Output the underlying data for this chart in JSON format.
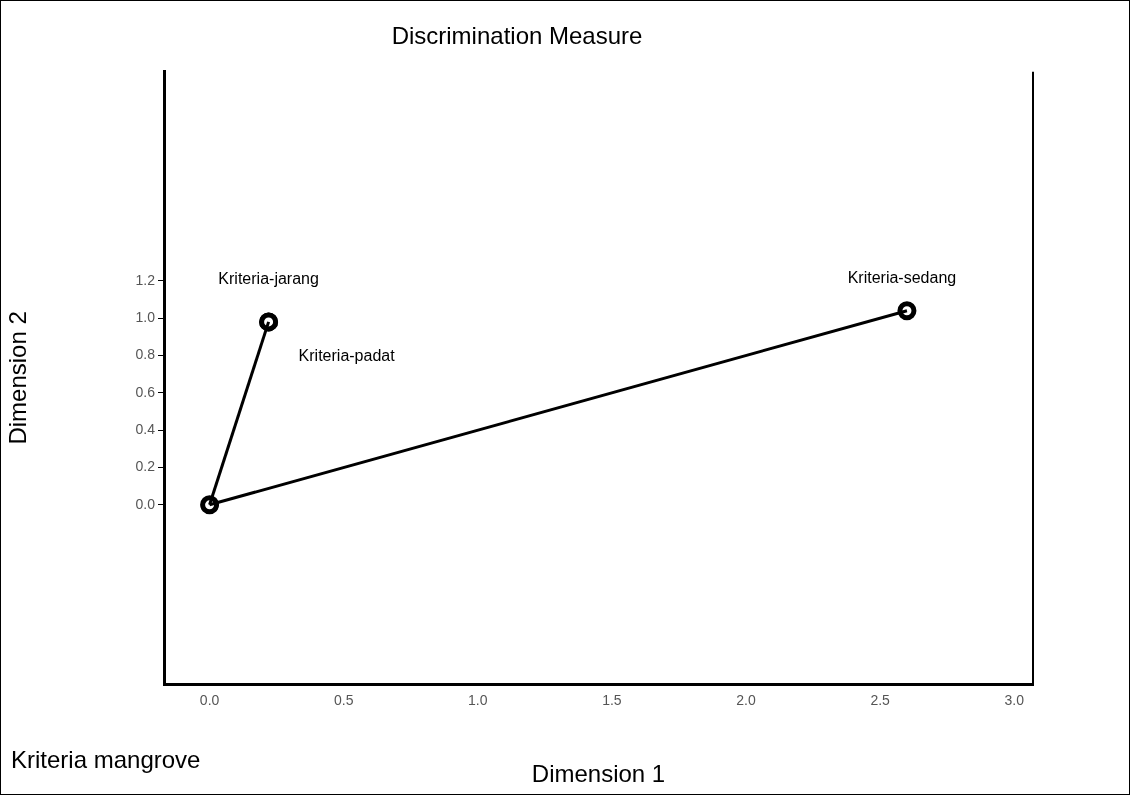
{
  "chart_data": {
    "type": "scatter",
    "title": "Discrimination Measure",
    "xlabel": "Dimension 1",
    "ylabel": "Dimension 2",
    "xlim": [
      -0.17,
      3.07
    ],
    "ylim": [
      -0.96,
      2.32
    ],
    "xticks": [
      {
        "value": 0,
        "label": "0.0"
      },
      {
        "value": 0.5,
        "label": "0.5"
      },
      {
        "value": 1,
        "label": "1.0"
      },
      {
        "value": 1.5,
        "label": "1.5"
      },
      {
        "value": 2,
        "label": "2.0"
      },
      {
        "value": 2.5,
        "label": "2.5"
      },
      {
        "value": 3,
        "label": "3.0"
      }
    ],
    "yticks": [
      {
        "value": 0,
        "label": "0.0"
      },
      {
        "value": 0.2,
        "label": "0.2"
      },
      {
        "value": 0.4,
        "label": "0.4"
      },
      {
        "value": 0.6,
        "label": "0.6"
      },
      {
        "value": 0.8,
        "label": "0.8"
      },
      {
        "value": 1,
        "label": "1.0"
      },
      {
        "value": 1.2,
        "label": "1.2"
      }
    ],
    "series": [
      {
        "type": "line",
        "color": "#000000",
        "x": [
          0,
          0.22
        ],
        "values": [
          0,
          0.98
        ],
        "marker": "none"
      },
      {
        "type": "line",
        "color": "#000000",
        "x": [
          0,
          2.6
        ],
        "values": [
          0,
          1.04
        ],
        "marker": "none"
      },
      {
        "color": "#000000",
        "x": [
          0.22,
          0.22,
          2.6,
          0
        ],
        "values": [
          0.98,
          0.98,
          1.04,
          0
        ],
        "value_labels": [
          "Kriteria-jarang",
          "Kriteria-padat",
          "Kriteria-sedang",
          null
        ]
      }
    ],
    "annotations": [
      "Kriteria mangrove"
    ],
    "marker": "circle",
    "grid": false,
    "legend": false
  }
}
